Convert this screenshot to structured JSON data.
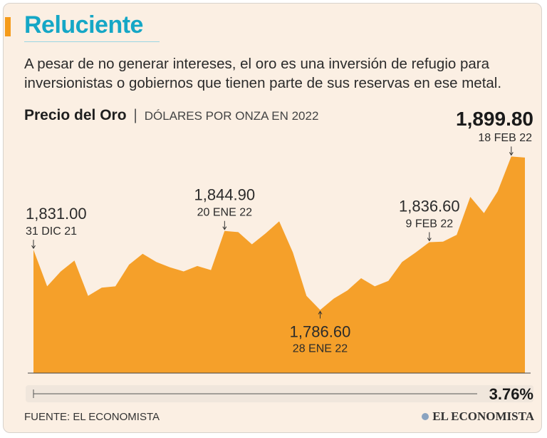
{
  "header": {
    "title": "Reluciente",
    "subtitle": "A pesar de no generar intereses, el oro es una inversión de refugio para inversionistas o gobiernos que tienen parte de sus reservas en ese metal.",
    "chart_title_bold": "Precio del Oro",
    "chart_title_sep": "|",
    "chart_title_unit": "DÓLARES POR ONZA EN 2022"
  },
  "chart_data": {
    "type": "area",
    "title": "Precio del Oro",
    "ylabel": "DÓLARES POR ONZA EN 2022",
    "ylim": [
      1740,
      1910
    ],
    "values": [
      1831.0,
      1804,
      1815,
      1823,
      1797,
      1803,
      1804,
      1820,
      1828,
      1822,
      1818,
      1815,
      1819,
      1816,
      1844.9,
      1844,
      1835,
      1843,
      1852,
      1829,
      1797,
      1786.6,
      1795,
      1801,
      1810,
      1804,
      1808,
      1822,
      1829,
      1836.6,
      1837,
      1842,
      1870,
      1858,
      1874,
      1899.8,
      1899
    ],
    "color": "#f5a02a",
    "annotations": [
      {
        "index": 0,
        "value": "1,831.00",
        "date": "31 DIC 21",
        "position": "above"
      },
      {
        "index": 14,
        "value": "1,844.90",
        "date": "20 ENE 22",
        "position": "above"
      },
      {
        "index": 21,
        "value": "1,786.60",
        "date": "28 ENE 22",
        "position": "below"
      },
      {
        "index": 29,
        "value": "1,836.60",
        "date": "9 FEB 22",
        "position": "above"
      },
      {
        "index": 35,
        "value": "1,899.80",
        "date": "18 FEB 22",
        "position": "above-max"
      }
    ],
    "change_percent": "3.76%"
  },
  "footer": {
    "source": "FUENTE: EL ECONOMISTA",
    "brand": "EL ECONOMISTA"
  }
}
